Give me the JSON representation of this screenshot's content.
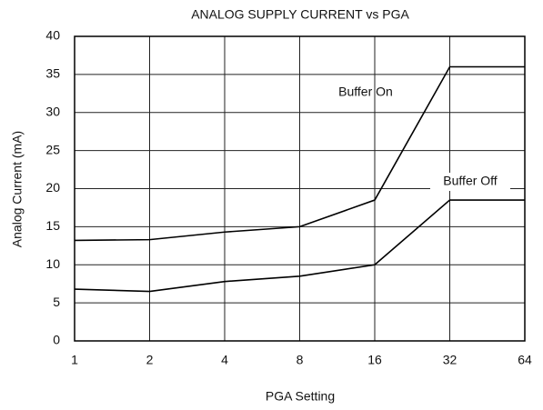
{
  "chart_data": {
    "type": "line",
    "title": "ANALOG SUPPLY CURRENT vs PGA",
    "x_label": "PGA Setting",
    "y_label": "Analog Current (mA)",
    "x": [
      1,
      2,
      4,
      8,
      16,
      32,
      64
    ],
    "xscale": "log",
    "xlim": [
      1,
      64
    ],
    "xticks": [
      1,
      2,
      4,
      8,
      16,
      32,
      64
    ],
    "ylim": [
      0,
      40
    ],
    "yticks": [
      0,
      5,
      10,
      15,
      20,
      25,
      30,
      35,
      40
    ],
    "grid": true,
    "series": [
      {
        "name": "Buffer On",
        "color": "#000000",
        "values": [
          13.2,
          13.3,
          14.3,
          15,
          18.5,
          36,
          36
        ]
      },
      {
        "name": "Buffer Off",
        "color": "#000000",
        "values": [
          6.8,
          6.5,
          7.8,
          8.5,
          10,
          18.5,
          18.5
        ]
      }
    ]
  }
}
